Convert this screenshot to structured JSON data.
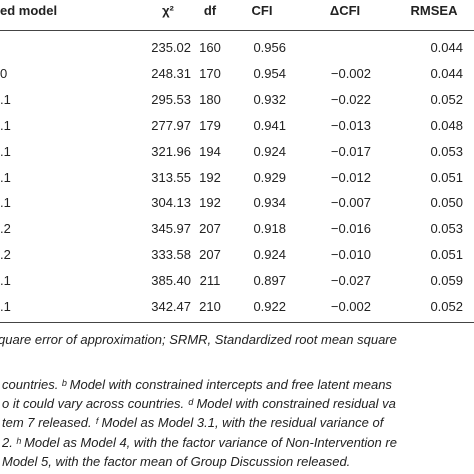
{
  "table": {
    "header": [
      "ed model",
      "χ²",
      "df",
      "CFI",
      "ΔCFI",
      "RMSEA"
    ],
    "rows": [
      [
        "",
        "235.02",
        "160",
        "0.956",
        "",
        "0.044"
      ],
      [
        "0",
        "248.31",
        "170",
        "0.954",
        "−0.002",
        "0.044"
      ],
      [
        ".1",
        "295.53",
        "180",
        "0.932",
        "−0.022",
        "0.052"
      ],
      [
        ".1",
        "277.97",
        "179",
        "0.941",
        "−0.013",
        "0.048"
      ],
      [
        ".1",
        "321.96",
        "194",
        "0.924",
        "−0.017",
        "0.053"
      ],
      [
        ".1",
        "313.55",
        "192",
        "0.929",
        "−0.012",
        "0.051"
      ],
      [
        ".1",
        "304.13",
        "192",
        "0.934",
        "−0.007",
        "0.050"
      ],
      [
        ".2",
        "345.97",
        "207",
        "0.918",
        "−0.016",
        "0.053"
      ],
      [
        ".2",
        "333.58",
        "207",
        "0.924",
        "−0.010",
        "0.051"
      ],
      [
        ".1",
        "385.40",
        "211",
        "0.897",
        "−0.027",
        "0.059"
      ],
      [
        ".1",
        "342.47",
        "210",
        "0.922",
        "−0.002",
        "0.052"
      ]
    ]
  },
  "footnotes": [
    "quare error of approximation; SRMR, Standardized root mean square",
    "countries. ᵇ Model with constrained intercepts and free latent means",
    "o it could vary across countries. ᵈ Model with constrained residual va",
    "tem 7 released. ᶠ Model as Model 3.1, with the residual variance of",
    "2. ʰ Model as Model 4, with the factor variance of Non-Intervention re",
    "Model 5, with the factor mean of Group Discussion released."
  ]
}
